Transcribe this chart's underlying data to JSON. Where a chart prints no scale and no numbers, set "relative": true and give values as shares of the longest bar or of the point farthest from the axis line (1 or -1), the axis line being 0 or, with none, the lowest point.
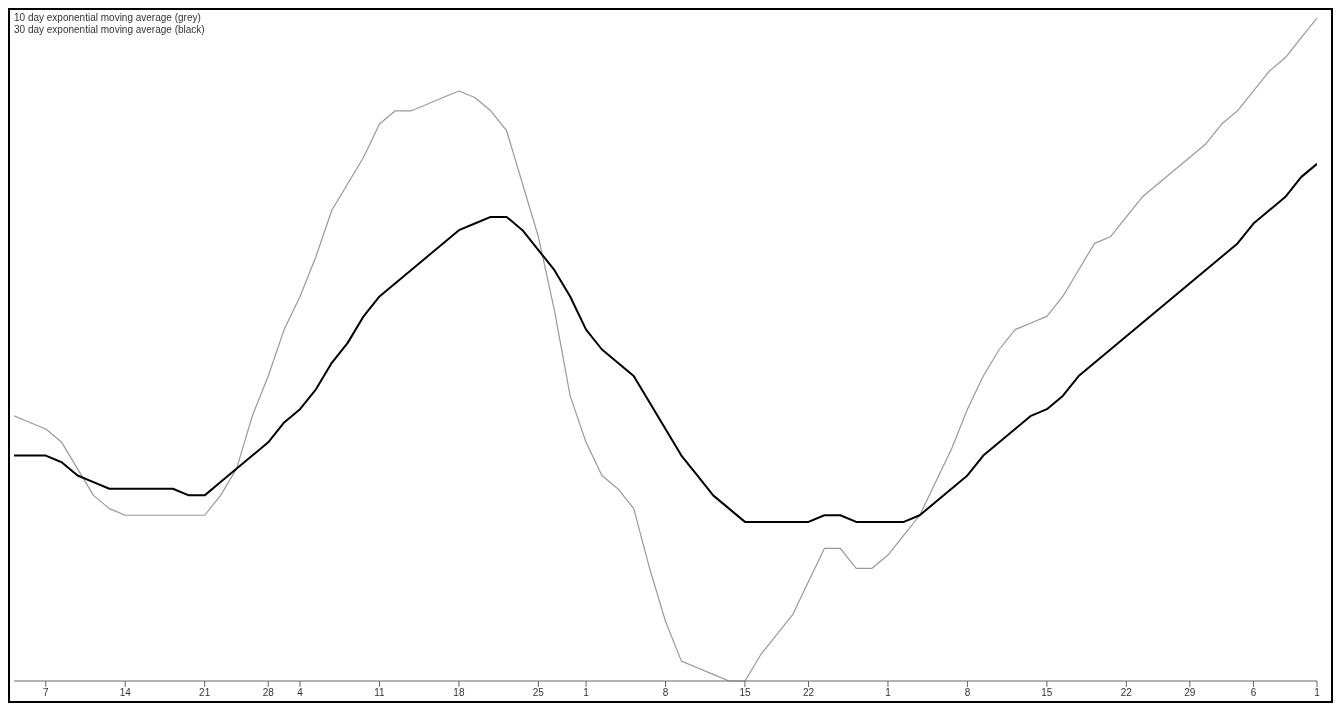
{
  "chart_data": {
    "type": "line",
    "relative": true,
    "annotations": [
      "10 day exponential moving average (grey)",
      "30 day exponential moving average (black)"
    ],
    "categories": [
      null,
      null,
      "7",
      null,
      null,
      null,
      null,
      "14",
      null,
      null,
      null,
      null,
      "21",
      null,
      null,
      null,
      "28",
      null,
      "4",
      null,
      null,
      null,
      null,
      "11",
      null,
      null,
      null,
      null,
      "18",
      null,
      null,
      null,
      null,
      "25",
      null,
      null,
      "1",
      null,
      null,
      null,
      null,
      "8",
      null,
      null,
      null,
      null,
      "15",
      null,
      null,
      null,
      "22",
      null,
      null,
      null,
      null,
      "1",
      null,
      null,
      null,
      null,
      "8",
      null,
      null,
      null,
      null,
      "15",
      null,
      null,
      null,
      null,
      "22",
      null,
      null,
      null,
      "29",
      null,
      null,
      null,
      "6",
      null,
      null,
      null,
      "1"
    ],
    "series": [
      {
        "color": "#999999",
        "values": [
          0.4,
          0.39,
          0.38,
          0.36,
          0.32,
          0.28,
          0.26,
          0.25,
          0.25,
          0.25,
          0.25,
          0.25,
          0.25,
          0.28,
          0.32,
          0.4,
          0.46,
          0.53,
          0.58,
          0.64,
          0.71,
          0.75,
          0.79,
          0.84,
          0.86,
          0.86,
          0.87,
          0.88,
          0.89,
          0.88,
          0.86,
          0.83,
          0.75,
          0.67,
          0.56,
          0.43,
          0.36,
          0.31,
          0.29,
          0.26,
          0.17,
          0.09,
          0.03,
          0.02,
          0.01,
          0.0,
          0,
          0.04,
          0.07,
          0.1,
          0.15,
          0.2,
          0.2,
          0.17,
          0.17,
          0.19,
          0.22,
          0.25,
          0.3,
          0.35,
          0.41,
          0.46,
          0.5,
          0.53,
          0.54,
          0.55,
          0.58,
          0.62,
          0.66,
          0.67,
          0.7,
          0.73,
          0.75,
          0.77,
          0.79,
          0.81,
          0.84,
          0.86,
          0.89,
          0.92,
          0.94,
          0.97,
          1
        ]
      },
      {
        "color": "#000000",
        "values": [
          0.34,
          0.34,
          0.34,
          0.33,
          0.31,
          0.3,
          0.29,
          0.29,
          0.29,
          0.29,
          0.29,
          0.28,
          0.28,
          0.3,
          0.32,
          0.34,
          0.36,
          0.39,
          0.41,
          0.44,
          0.48,
          0.51,
          0.55,
          0.58,
          0.6,
          0.62,
          0.64,
          0.66,
          0.68,
          0.69,
          0.7,
          0.7,
          0.68,
          0.65,
          0.62,
          0.58,
          0.53,
          0.5,
          0.48,
          0.46,
          0.42,
          0.38,
          0.34,
          0.31,
          0.28,
          0.26,
          0.24,
          0.24,
          0.24,
          0.24,
          0.24,
          0.25,
          0.25,
          0.24,
          0.24,
          0.24,
          0.24,
          0.25,
          0.27,
          0.29,
          0.31,
          0.34,
          0.36,
          0.38,
          0.4,
          0.41,
          0.43,
          0.46,
          0.48,
          0.5,
          0.52,
          0.54,
          0.56,
          0.58,
          0.6,
          0.62,
          0.64,
          0.66,
          0.69,
          0.71,
          0.73,
          0.76,
          0.78
        ]
      }
    ]
  }
}
